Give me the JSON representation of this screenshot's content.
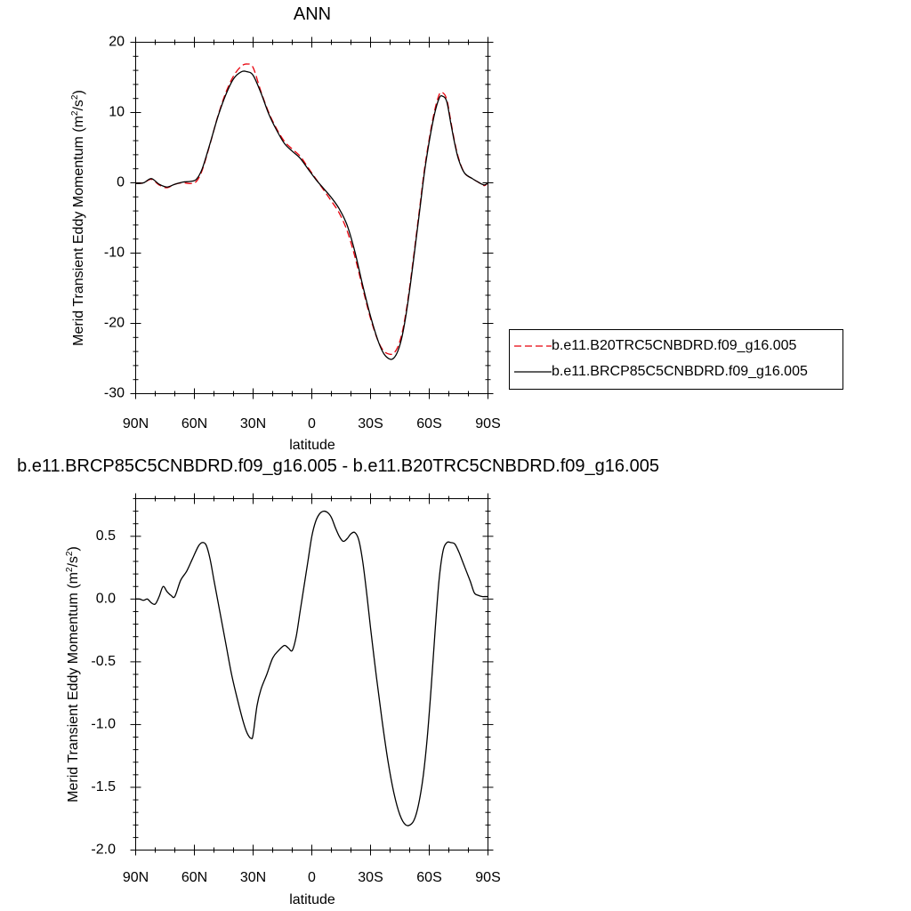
{
  "chart_data": [
    {
      "type": "line",
      "title": "ANN",
      "xlabel": "latitude",
      "ylabel_main": "Merid Transient Eddy Momentum (m",
      "ylabel_exp1": "2",
      "ylabel_mid": "/s",
      "ylabel_exp2": "2",
      "ylabel_end": ")",
      "xlim": [
        90,
        -90
      ],
      "ylim": [
        -30,
        20
      ],
      "xticks": [
        {
          "value": 90,
          "label": "90N"
        },
        {
          "value": 60,
          "label": "60N"
        },
        {
          "value": 30,
          "label": "30N"
        },
        {
          "value": 0,
          "label": "0"
        },
        {
          "value": -30,
          "label": "30S"
        },
        {
          "value": -60,
          "label": "60S"
        },
        {
          "value": -90,
          "label": "90S"
        }
      ],
      "yticks": [
        {
          "value": 20,
          "label": "20"
        },
        {
          "value": 10,
          "label": "10"
        },
        {
          "value": 0,
          "label": "0"
        },
        {
          "value": -10,
          "label": "-10"
        },
        {
          "value": -20,
          "label": "-20"
        },
        {
          "value": -30,
          "label": "-30"
        }
      ],
      "legend_position": "right",
      "series": [
        {
          "name": "b.e11.B20TRC5CNBDRD.f09_g16.005",
          "color": "#e8000b",
          "dash": "dashed",
          "x": [
            90,
            86,
            82,
            78,
            74,
            70,
            66,
            62,
            59,
            56,
            52,
            48,
            44,
            40,
            36,
            33,
            30,
            26,
            22,
            18,
            14,
            10,
            6,
            2,
            -2,
            -6,
            -10,
            -14,
            -18,
            -22,
            -26,
            -30,
            -34,
            -37,
            -40,
            -42,
            -44,
            -46,
            -48,
            -50,
            -52,
            -55,
            -58,
            -62,
            -65,
            -67,
            -69,
            -71,
            -73,
            -75,
            -78,
            -82,
            -85,
            -88,
            -90
          ],
          "y": [
            -0.1,
            0.0,
            0.5,
            -0.3,
            -0.7,
            -0.2,
            0.0,
            -0.1,
            0.2,
            1.8,
            5.5,
            9.5,
            12.8,
            15.2,
            16.6,
            16.9,
            16.4,
            13.0,
            10.0,
            7.7,
            5.9,
            4.8,
            3.8,
            2.2,
            0.6,
            -1.0,
            -2.6,
            -4.3,
            -6.8,
            -10.5,
            -15.0,
            -19.3,
            -22.6,
            -24.0,
            -24.4,
            -24.2,
            -23.3,
            -21.5,
            -18.6,
            -14.8,
            -10.5,
            -3.8,
            2.8,
            9.3,
            12.5,
            12.8,
            11.8,
            8.8,
            5.8,
            3.5,
            1.4,
            0.6,
            0.1,
            -0.4,
            0.0
          ]
        },
        {
          "name": "b.e11.BRCP85C5CNBDRD.f09_g16.005",
          "color": "#000000",
          "dash": "solid",
          "x": [
            90,
            86,
            82,
            78,
            74,
            70,
            66,
            62,
            59,
            56,
            52,
            48,
            44,
            40,
            36,
            33,
            30,
            26,
            22,
            18,
            14,
            10,
            6,
            2,
            -2,
            -6,
            -10,
            -14,
            -18,
            -22,
            -26,
            -30,
            -34,
            -37,
            -40,
            -42,
            -44,
            -46,
            -48,
            -50,
            -52,
            -55,
            -58,
            -62,
            -65,
            -67,
            -69,
            -71,
            -73,
            -75,
            -78,
            -82,
            -85,
            -88,
            -90
          ],
          "y": [
            -0.1,
            0.0,
            0.6,
            -0.2,
            -0.6,
            -0.2,
            0.1,
            0.2,
            0.5,
            2.0,
            5.6,
            9.4,
            12.5,
            14.8,
            15.8,
            15.8,
            15.3,
            12.8,
            9.8,
            7.5,
            5.6,
            4.5,
            3.5,
            2.0,
            0.5,
            -0.8,
            -2.1,
            -3.7,
            -6.0,
            -9.8,
            -14.6,
            -19.0,
            -22.6,
            -24.4,
            -25.1,
            -24.9,
            -23.9,
            -22.0,
            -19.0,
            -15.2,
            -10.9,
            -4.2,
            2.4,
            8.9,
            12.0,
            12.3,
            11.5,
            8.5,
            5.6,
            3.3,
            1.4,
            0.6,
            0.1,
            -0.3,
            0.0
          ]
        }
      ]
    },
    {
      "type": "line",
      "title": "b.e11.BRCP85C5CNBDRD.f09_g16.005 - b.e11.B20TRC5CNBDRD.f09_g16.005",
      "xlabel": "latitude",
      "ylabel_main": "Merid Transient Eddy Momentum (m",
      "ylabel_exp1": "2",
      "ylabel_mid": "/s",
      "ylabel_exp2": "2",
      "ylabel_end": ")",
      "xlim": [
        90,
        -90
      ],
      "ylim": [
        -2.0,
        0.8
      ],
      "xticks": [
        {
          "value": 90,
          "label": "90N"
        },
        {
          "value": 60,
          "label": "60N"
        },
        {
          "value": 30,
          "label": "30N"
        },
        {
          "value": 0,
          "label": "0"
        },
        {
          "value": -30,
          "label": "30S"
        },
        {
          "value": -60,
          "label": "60S"
        },
        {
          "value": -90,
          "label": "90S"
        }
      ],
      "yticks": [
        {
          "value": 0.5,
          "label": "0.5"
        },
        {
          "value": 0.0,
          "label": "0.0"
        },
        {
          "value": -0.5,
          "label": "-0.5"
        },
        {
          "value": -1.0,
          "label": "-1.0"
        },
        {
          "value": -1.5,
          "label": "-1.5"
        },
        {
          "value": -2.0,
          "label": "-2.0"
        }
      ],
      "series": [
        {
          "color": "#000000",
          "dash": "solid",
          "x": [
            90,
            88,
            86,
            84,
            82,
            80,
            78,
            76,
            74,
            72,
            70,
            67,
            64,
            61,
            58,
            56,
            54,
            52,
            50,
            47,
            44,
            41,
            38,
            35,
            33,
            31,
            30,
            28,
            26,
            23,
            20,
            17,
            14,
            12,
            10,
            8,
            6,
            4,
            2,
            0,
            -2,
            -4,
            -6,
            -8,
            -10,
            -12,
            -14,
            -16,
            -18,
            -20,
            -22,
            -24,
            -26,
            -28,
            -30,
            -33,
            -36,
            -39,
            -42,
            -45,
            -48,
            -51,
            -53,
            -55,
            -57,
            -59,
            -61,
            -63,
            -65,
            -67,
            -69,
            -71,
            -73,
            -75,
            -77,
            -79,
            -81,
            -83,
            -85,
            -87,
            -89,
            -90
          ],
          "y": [
            0.0,
            0.0,
            -0.01,
            0.0,
            -0.03,
            -0.04,
            0.02,
            0.1,
            0.06,
            0.03,
            0.02,
            0.15,
            0.22,
            0.32,
            0.42,
            0.45,
            0.43,
            0.32,
            0.15,
            -0.1,
            -0.35,
            -0.6,
            -0.8,
            -0.98,
            -1.07,
            -1.11,
            -1.08,
            -0.85,
            -0.72,
            -0.6,
            -0.47,
            -0.41,
            -0.37,
            -0.39,
            -0.41,
            -0.3,
            -0.1,
            0.1,
            0.3,
            0.5,
            0.62,
            0.68,
            0.7,
            0.69,
            0.65,
            0.57,
            0.5,
            0.46,
            0.48,
            0.52,
            0.53,
            0.47,
            0.3,
            0.05,
            -0.23,
            -0.62,
            -0.98,
            -1.3,
            -1.55,
            -1.72,
            -1.8,
            -1.79,
            -1.73,
            -1.6,
            -1.4,
            -1.1,
            -0.7,
            -0.25,
            0.15,
            0.38,
            0.45,
            0.45,
            0.44,
            0.38,
            0.3,
            0.22,
            0.14,
            0.05,
            0.03,
            0.02,
            0.02,
            0.02
          ]
        }
      ]
    }
  ]
}
